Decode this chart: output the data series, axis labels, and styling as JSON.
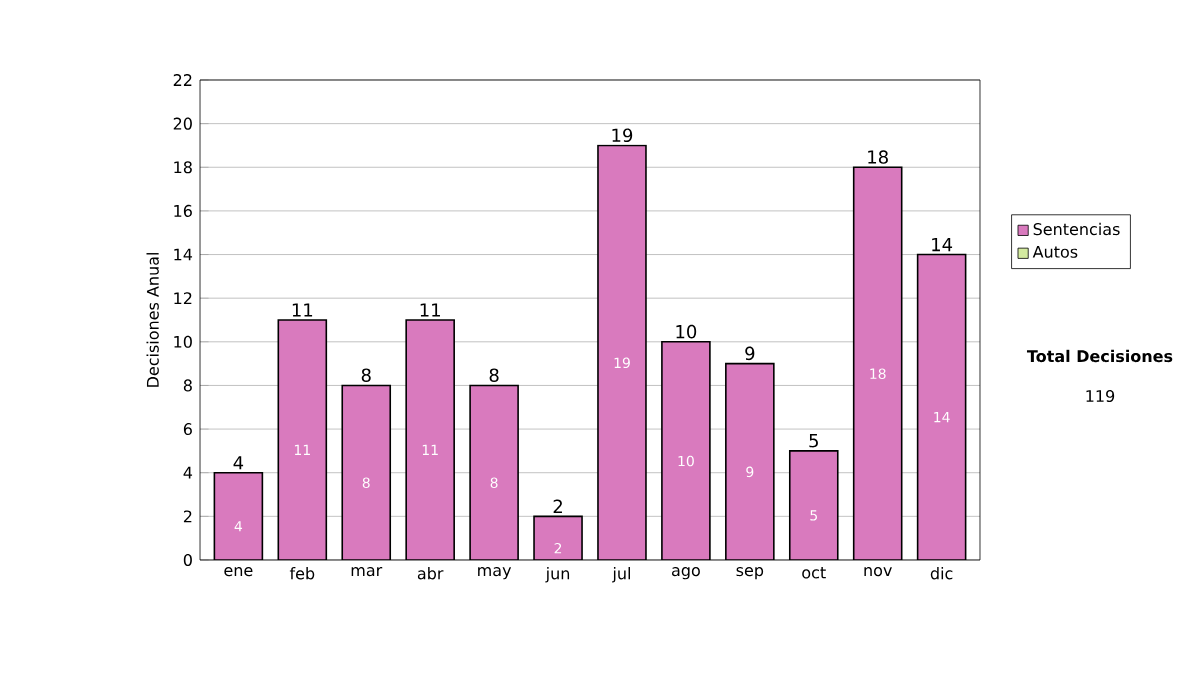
{
  "chart_data": {
    "type": "bar",
    "stacked": true,
    "ylabel": "Decisiones Anual",
    "categories": [
      "ene",
      "feb",
      "mar",
      "abr",
      "may",
      "jun",
      "jul",
      "ago",
      "sep",
      "oct",
      "nov",
      "dic"
    ],
    "series": [
      {
        "name": "Sentencias",
        "color": "#d97abe",
        "values": [
          4,
          11,
          8,
          11,
          8,
          2,
          19,
          10,
          9,
          5,
          18,
          14
        ]
      },
      {
        "name": "Autos",
        "color": "#d4eba0",
        "values": [
          null,
          null,
          null,
          null,
          null,
          null,
          null,
          null,
          null,
          null,
          null,
          null
        ]
      }
    ],
    "totals": [
      "4",
      "11",
      "8",
      "11",
      "8",
      "2",
      "19",
      "10",
      "9",
      "5",
      "18",
      "14"
    ],
    "data_labels": true,
    "ylim": [
      0,
      22
    ],
    "yticks": [
      0,
      2,
      4,
      6,
      8,
      10,
      12,
      14,
      16,
      18,
      20,
      22
    ],
    "grid": "y",
    "legend": "right",
    "annotations": [
      "**Total Decisiones**",
      "119"
    ]
  }
}
